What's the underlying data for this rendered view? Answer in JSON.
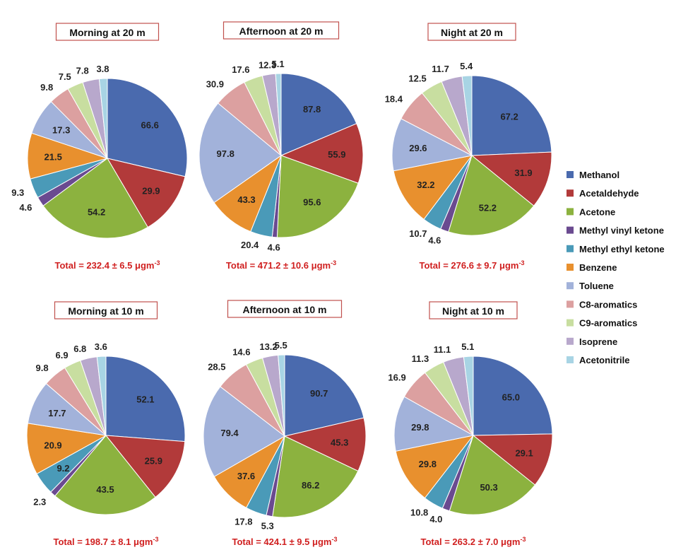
{
  "legend": [
    {
      "name": "Methanol",
      "color": "#4a6aae"
    },
    {
      "name": "Acetaldehyde",
      "color": "#b23a3a"
    },
    {
      "name": "Acetone",
      "color": "#8cb23f"
    },
    {
      "name": "Methyl vinyl ketone",
      "color": "#6a4a90"
    },
    {
      "name": "Methyl ethyl ketone",
      "color": "#4a9ab8"
    },
    {
      "name": "Benzene",
      "color": "#e8902e"
    },
    {
      "name": "Toluene",
      "color": "#a2b2da"
    },
    {
      "name": "C8-aromatics",
      "color": "#dca0a0"
    },
    {
      "name": "C9-aromatics",
      "color": "#c8dea0"
    },
    {
      "name": "Isoprene",
      "color": "#b8a8cc"
    },
    {
      "name": "Acetonitrile",
      "color": "#a8d4e4"
    }
  ],
  "chart_data": [
    {
      "type": "pie",
      "title": "Morning at 20 m",
      "total": "Total = 232.4 ± 6.5 μgm",
      "total_exp": "-3",
      "categories": [
        "Methanol",
        "Acetaldehyde",
        "Acetone",
        "Methyl vinyl ketone",
        "Methyl ethyl ketone",
        "Benzene",
        "Toluene",
        "C8-aromatics",
        "C9-aromatics",
        "Isoprene",
        "Acetonitrile"
      ],
      "values": [
        66.6,
        29.9,
        54.2,
        4.6,
        9.3,
        21.5,
        17.3,
        9.8,
        7.5,
        7.8,
        3.8
      ]
    },
    {
      "type": "pie",
      "title": "Afternoon at 20 m",
      "total": "Total = 471.2 ± 10.6 μgm",
      "total_exp": "-3",
      "categories": [
        "Methanol",
        "Acetaldehyde",
        "Acetone",
        "Methyl vinyl ketone",
        "Methyl ethyl ketone",
        "Benzene",
        "Toluene",
        "C8-aromatics",
        "C9-aromatics",
        "Isoprene",
        "Acetonitrile"
      ],
      "values": [
        87.8,
        55.9,
        95.6,
        4.6,
        20.4,
        43.3,
        97.8,
        30.9,
        17.6,
        12.3,
        5.1
      ]
    },
    {
      "type": "pie",
      "title": "Night at 20 m",
      "total": "Total = 276.6 ± 9.7 μgm",
      "total_exp": "-3",
      "categories": [
        "Methanol",
        "Acetaldehyde",
        "Acetone",
        "Methyl vinyl ketone",
        "Methyl ethyl ketone",
        "Benzene",
        "Toluene",
        "C8-aromatics",
        "C9-aromatics",
        "Isoprene",
        "Acetonitrile"
      ],
      "values": [
        67.2,
        31.9,
        52.2,
        4.6,
        10.7,
        32.2,
        29.6,
        18.4,
        12.5,
        11.7,
        5.4
      ]
    },
    {
      "type": "pie",
      "title": "Morning at 10 m",
      "total": "Total = 198.7 ± 8.1 μgm",
      "total_exp": "-3",
      "categories": [
        "Methanol",
        "Acetaldehyde",
        "Acetone",
        "Methyl vinyl ketone",
        "Methyl ethyl ketone",
        "Benzene",
        "Toluene",
        "C8-aromatics",
        "C9-aromatics",
        "Isoprene",
        "Acetonitrile"
      ],
      "values": [
        52.1,
        25.9,
        43.5,
        2.3,
        9.2,
        20.9,
        17.7,
        9.8,
        6.9,
        6.8,
        3.6
      ]
    },
    {
      "type": "pie",
      "title": "Afternoon at 10 m",
      "total": "Total = 424.1 ± 9.5 μgm",
      "total_exp": "-3",
      "categories": [
        "Methanol",
        "Acetaldehyde",
        "Acetone",
        "Methyl vinyl ketone",
        "Methyl ethyl ketone",
        "Benzene",
        "Toluene",
        "C8-aromatics",
        "C9-aromatics",
        "Isoprene",
        "Acetonitrile"
      ],
      "values": [
        90.7,
        45.3,
        86.2,
        5.3,
        17.8,
        37.6,
        79.4,
        28.5,
        14.6,
        13.2,
        5.5
      ]
    },
    {
      "type": "pie",
      "title": "Night at 10 m",
      "total": "Total = 263.2 ± 7.0 μgm",
      "total_exp": "-3",
      "categories": [
        "Methanol",
        "Acetaldehyde",
        "Acetone",
        "Methyl vinyl ketone",
        "Methyl ethyl ketone",
        "Benzene",
        "Toluene",
        "C8-aromatics",
        "C9-aromatics",
        "Isoprene",
        "Acetonitrile"
      ],
      "values": [
        65.0,
        29.1,
        50.3,
        4.0,
        10.8,
        29.8,
        29.8,
        16.9,
        11.3,
        11.1,
        5.1
      ]
    }
  ]
}
